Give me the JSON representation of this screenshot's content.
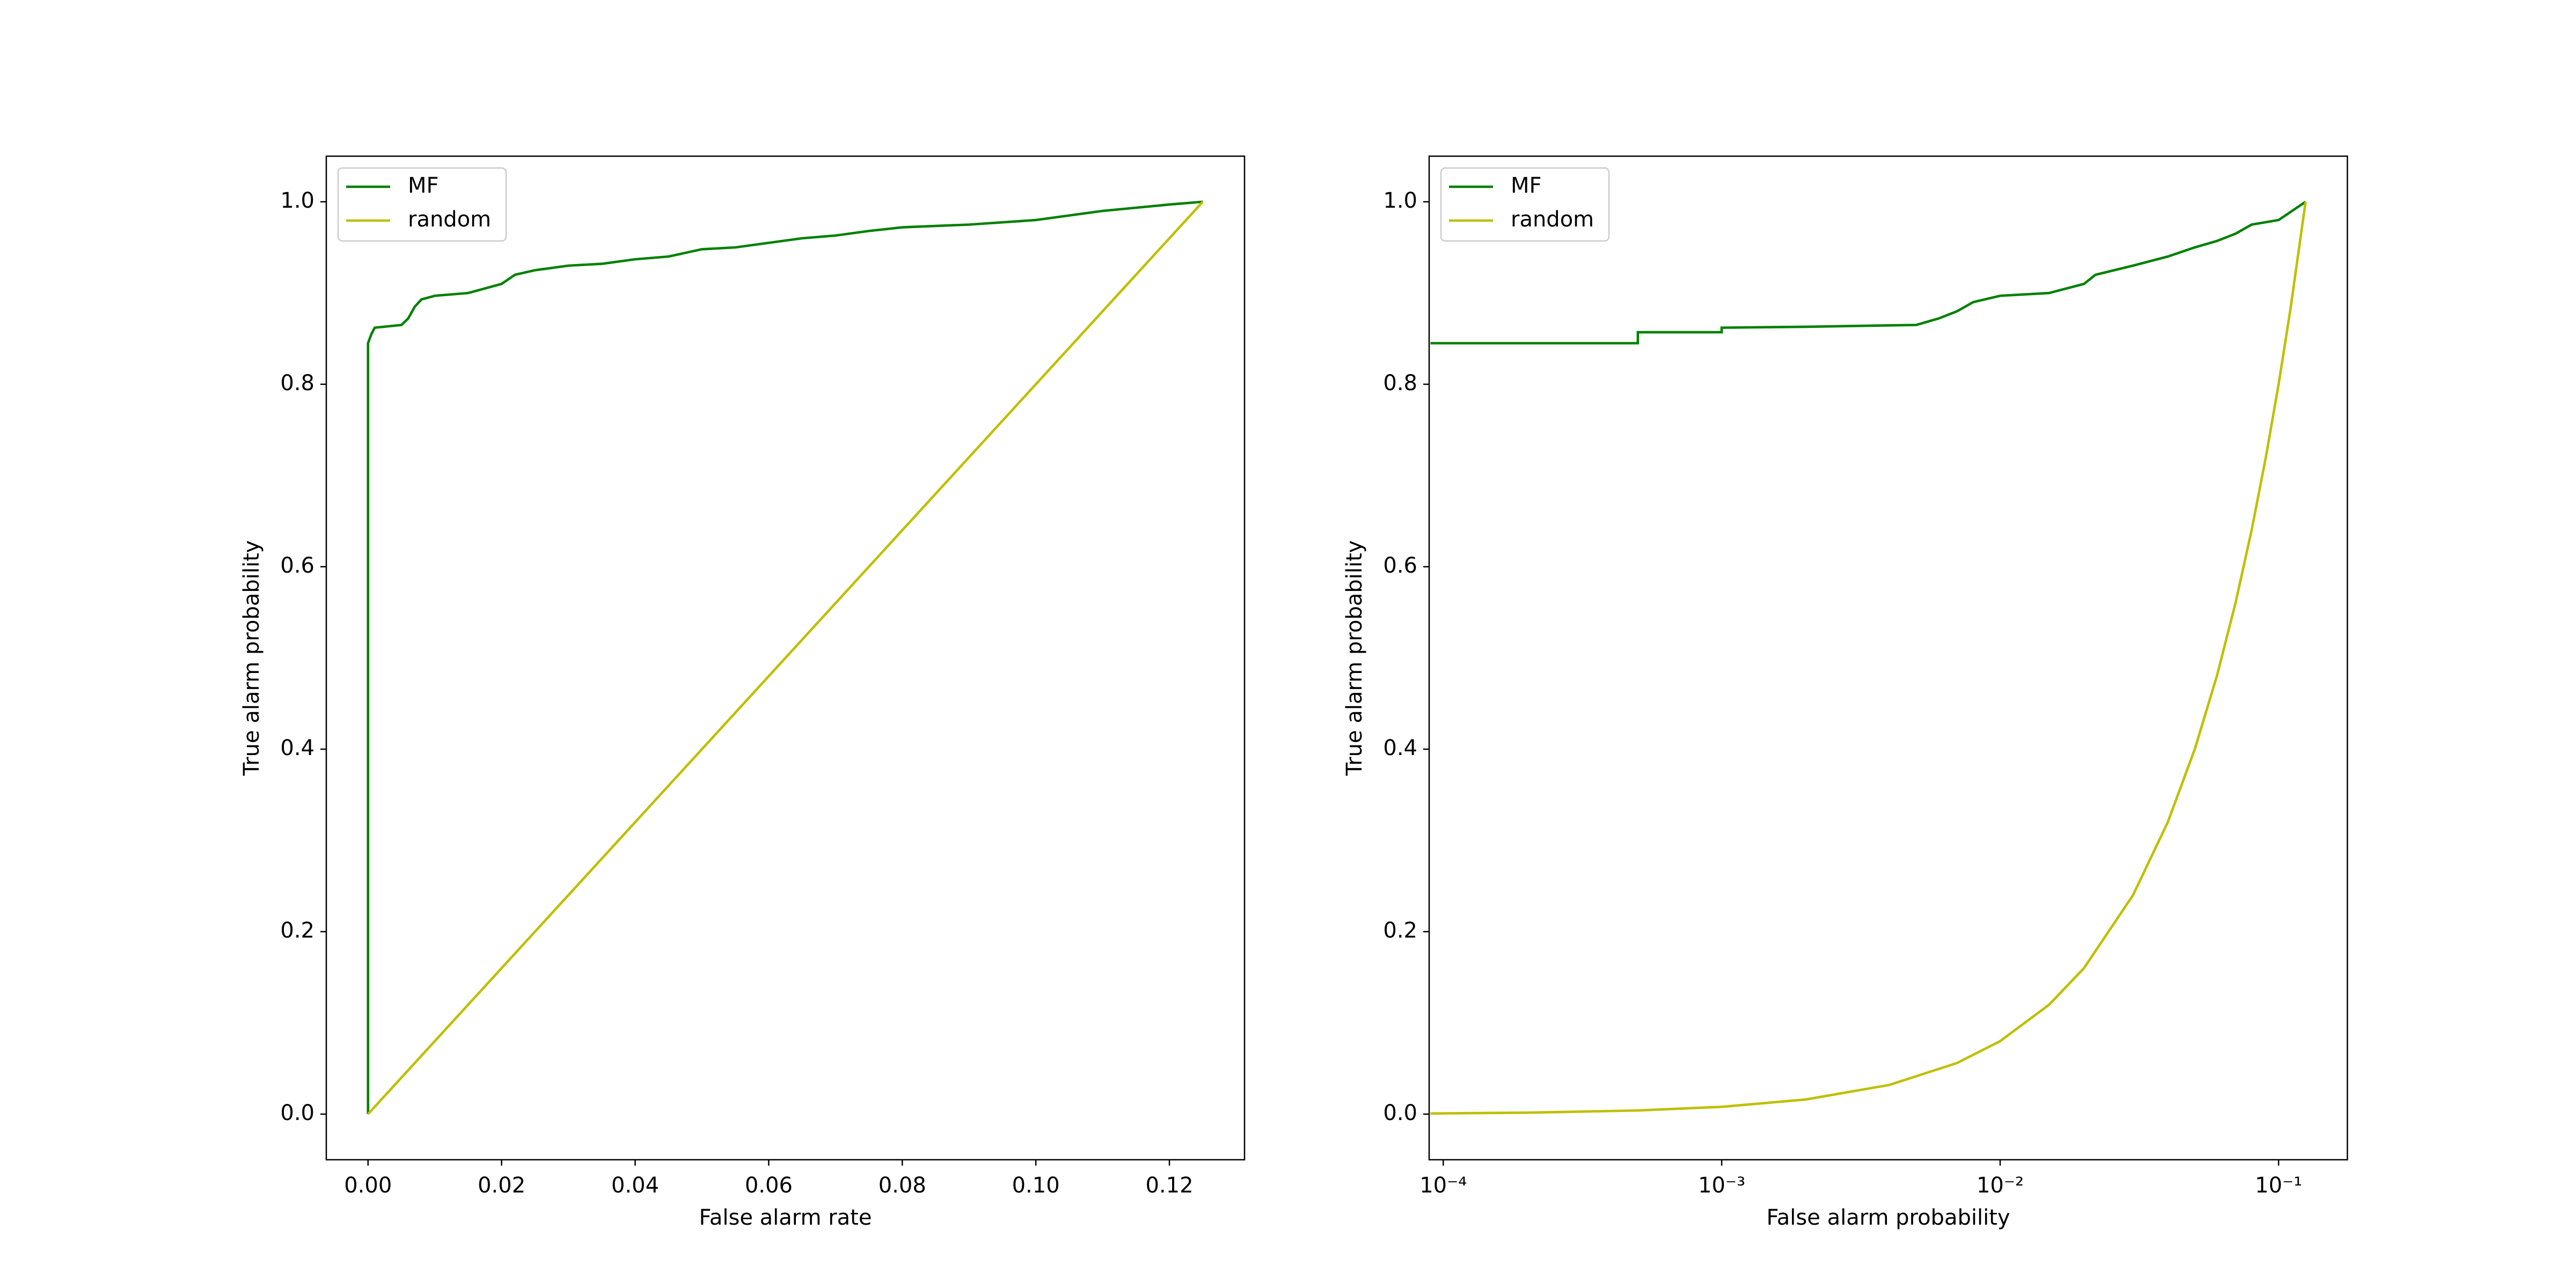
{
  "chart_data": [
    {
      "type": "line",
      "xlabel": "False alarm rate",
      "ylabel": "True alarm probability",
      "xlim": [
        -0.00625,
        0.13125
      ],
      "ylim": [
        -0.05,
        1.05
      ],
      "xticks": [
        {
          "value": 0,
          "label": "0.00"
        },
        0.02,
        0.04,
        0.06,
        0.08,
        {
          "value": 0.1,
          "label": "0.10"
        },
        0.12
      ],
      "yticks": [
        {
          "value": 0,
          "label": "0.0"
        },
        0.2,
        0.4,
        0.6,
        0.8,
        {
          "value": 1,
          "label": "1.0"
        }
      ],
      "legend": "upper left",
      "series": [
        {
          "name": "MF",
          "color": "#008000",
          "x": [
            0,
            0,
            0.0005,
            0.001,
            0.005,
            0.006,
            0.007,
            0.008,
            0.01,
            0.015,
            0.02,
            0.022,
            0.025,
            0.03,
            0.035,
            0.04,
            0.045,
            0.05,
            0.055,
            0.06,
            0.065,
            0.07,
            0.075,
            0.08,
            0.09,
            0.1,
            0.11,
            0.12,
            0.125
          ],
          "values": [
            0,
            0.845,
            0.855,
            0.862,
            0.865,
            0.872,
            0.885,
            0.893,
            0.897,
            0.9,
            0.91,
            0.92,
            0.925,
            0.93,
            0.932,
            0.937,
            0.94,
            0.948,
            0.95,
            0.955,
            0.96,
            0.963,
            0.968,
            0.972,
            0.975,
            0.98,
            0.99,
            0.997,
            1.0
          ]
        },
        {
          "name": "random",
          "color": "#bfbf00",
          "x": [
            0,
            0.125
          ],
          "values": [
            0,
            1.0
          ]
        }
      ]
    },
    {
      "type": "line",
      "xlabel": "False alarm probability",
      "ylabel": "True alarm probability",
      "xscale": "log",
      "xlim": [
        8.9e-05,
        0.1766
      ],
      "ylim": [
        -0.05,
        1.05
      ],
      "xticks": [
        {
          "value": 0.0001,
          "label": "10⁻⁴"
        },
        {
          "value": 0.001,
          "label": "10⁻³"
        },
        {
          "value": 0.01,
          "label": "10⁻²"
        },
        {
          "value": 0.1,
          "label": "10⁻¹"
        }
      ],
      "yticks": [
        {
          "value": 0,
          "label": "0.0"
        },
        0.2,
        0.4,
        0.6,
        0.8,
        {
          "value": 1,
          "label": "1.0"
        }
      ],
      "legend": "upper left",
      "series": [
        {
          "name": "MF",
          "color": "#008000",
          "x": [
            9e-05,
            0.0005,
            0.0005,
            0.001,
            0.001,
            0.002,
            0.005,
            0.006,
            0.007,
            0.008,
            0.01,
            0.015,
            0.02,
            0.022,
            0.03,
            0.04,
            0.05,
            0.06,
            0.07,
            0.08,
            0.1,
            0.125
          ],
          "values": [
            0.845,
            0.845,
            0.857,
            0.857,
            0.862,
            0.863,
            0.865,
            0.872,
            0.88,
            0.89,
            0.897,
            0.9,
            0.91,
            0.92,
            0.93,
            0.94,
            0.95,
            0.957,
            0.965,
            0.975,
            0.98,
            1.0
          ]
        },
        {
          "name": "random",
          "color": "#bfbf00",
          "x": [
            9e-05,
            0.0002,
            0.0005,
            0.001,
            0.002,
            0.004,
            0.007,
            0.01,
            0.015,
            0.02,
            0.03,
            0.04,
            0.05,
            0.06,
            0.07,
            0.08,
            0.09,
            0.1,
            0.11,
            0.125
          ],
          "values": [
            0.00072,
            0.0016,
            0.004,
            0.008,
            0.016,
            0.032,
            0.056,
            0.08,
            0.12,
            0.16,
            0.24,
            0.32,
            0.4,
            0.48,
            0.56,
            0.64,
            0.72,
            0.8,
            0.88,
            1.0
          ]
        }
      ]
    }
  ]
}
